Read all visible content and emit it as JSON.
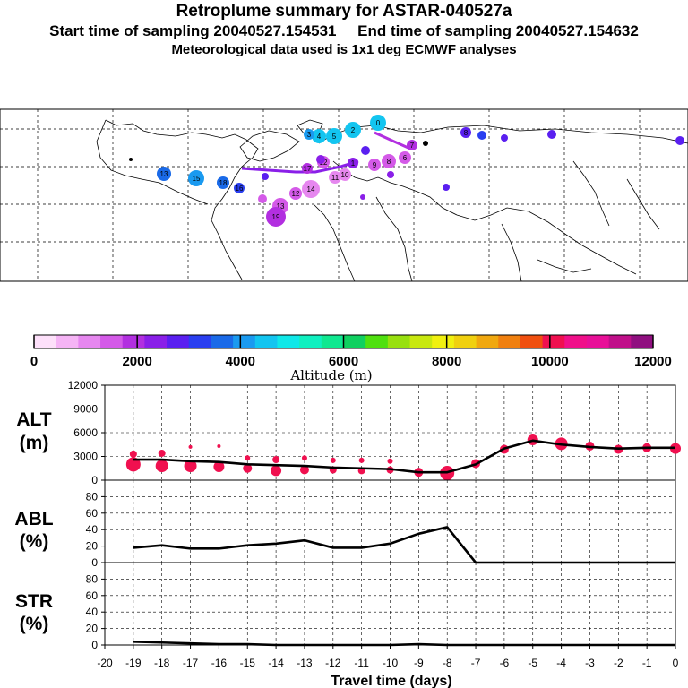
{
  "header": {
    "title": "Retroplume summary for ASTAR-040527a",
    "start_label": "Start time of sampling 20040527.154531",
    "end_label": "End time of sampling 20040527.154632",
    "met_label": "Meteorological data used is 1x1 deg ECMWF analyses"
  },
  "colorbar": {
    "label": "Altitude (m)",
    "ticks": [
      "0",
      "2000",
      "4000",
      "6000",
      "8000",
      "10000",
      "12000"
    ],
    "colors": [
      "#fde0fa",
      "#f5b4f5",
      "#e687ef",
      "#d45ae8",
      "#b22fe0",
      "#8a1fe8",
      "#5a1ff0",
      "#2a3ff0",
      "#1a6ae8",
      "#1a9af0",
      "#13c5f0",
      "#10e8e8",
      "#10f0c0",
      "#10e890",
      "#10d060",
      "#50e010",
      "#98e010",
      "#c8e810",
      "#f0f010",
      "#f0d010",
      "#f0a810",
      "#f08010",
      "#f05010",
      "#f01050",
      "#f0108a",
      "#e81098",
      "#c0108a",
      "#901080"
    ]
  },
  "map": {
    "trajectory_labels": [
      "0",
      "1",
      "2",
      "3",
      "4",
      "5",
      "6",
      "7",
      "8",
      "9",
      "10",
      "11",
      "12",
      "13",
      "14",
      "15",
      "16",
      "17",
      "18",
      "19"
    ]
  },
  "chart_data": [
    {
      "type": "line",
      "name": "ALT",
      "ylabel_line1": "ALT",
      "ylabel_line2": "(m)",
      "ylim": [
        0,
        12000
      ],
      "yticks": [
        "0",
        "3000",
        "6000",
        "9000",
        "12000"
      ],
      "x": [
        -19,
        -18,
        -17,
        -16,
        -15,
        -14,
        -13,
        -12,
        -11,
        -10,
        -9,
        -8,
        -7,
        -6,
        -5,
        -4,
        -3,
        -2,
        -1,
        0
      ],
      "values": [
        2600,
        2600,
        2400,
        2300,
        2000,
        1900,
        1800,
        1600,
        1500,
        1400,
        1000,
        1000,
        2000,
        4000,
        5000,
        4500,
        4200,
        4000,
        4100,
        4100
      ],
      "clusters": [
        {
          "x": -19,
          "points": [
            [
              2000,
              8
            ],
            [
              3300,
              4
            ]
          ]
        },
        {
          "x": -18,
          "points": [
            [
              1800,
              7
            ],
            [
              3400,
              4
            ]
          ]
        },
        {
          "x": -17,
          "points": [
            [
              1800,
              7
            ],
            [
              4200,
              2
            ]
          ]
        },
        {
          "x": -16,
          "points": [
            [
              1700,
              6
            ],
            [
              4300,
              2
            ]
          ]
        },
        {
          "x": -15,
          "points": [
            [
              1500,
              5
            ],
            [
              2800,
              3
            ]
          ]
        },
        {
          "x": -14,
          "points": [
            [
              1200,
              6
            ],
            [
              2600,
              4
            ]
          ]
        },
        {
          "x": -13,
          "points": [
            [
              1300,
              5
            ],
            [
              2800,
              3
            ]
          ]
        },
        {
          "x": -12,
          "points": [
            [
              1300,
              4
            ],
            [
              2500,
              3
            ]
          ]
        },
        {
          "x": -11,
          "points": [
            [
              1200,
              4
            ],
            [
              2500,
              3
            ]
          ]
        },
        {
          "x": -10,
          "points": [
            [
              1300,
              4
            ],
            [
              2400,
              3
            ]
          ]
        },
        {
          "x": -9,
          "points": [
            [
              1000,
              5
            ]
          ]
        },
        {
          "x": -8,
          "points": [
            [
              900,
              8
            ]
          ]
        },
        {
          "x": -7,
          "points": [
            [
              2100,
              5
            ]
          ]
        },
        {
          "x": -6,
          "points": [
            [
              3900,
              5
            ]
          ]
        },
        {
          "x": -5,
          "points": [
            [
              5100,
              6
            ]
          ]
        },
        {
          "x": -4,
          "points": [
            [
              4600,
              7
            ]
          ]
        },
        {
          "x": -3,
          "points": [
            [
              4300,
              5
            ]
          ]
        },
        {
          "x": -2,
          "points": [
            [
              3900,
              5
            ]
          ]
        },
        {
          "x": -1,
          "points": [
            [
              4100,
              5
            ]
          ]
        },
        {
          "x": 0,
          "points": [
            [
              4000,
              6
            ]
          ]
        }
      ]
    },
    {
      "type": "line",
      "name": "ABL",
      "ylabel_line1": "ABL",
      "ylabel_line2": "(%)",
      "ylim": [
        0,
        100
      ],
      "yticks": [
        "0",
        "20",
        "40",
        "60",
        "80"
      ],
      "x": [
        -19,
        -18,
        -17,
        -16,
        -15,
        -14,
        -13,
        -12,
        -11,
        -10,
        -9,
        -8,
        -7,
        -6,
        -5,
        -4,
        -3,
        -2,
        -1,
        0
      ],
      "values": [
        18,
        21,
        17,
        17,
        21,
        23,
        27,
        18,
        18,
        23,
        35,
        43,
        0,
        0,
        0,
        0,
        0,
        0,
        0,
        0
      ]
    },
    {
      "type": "line",
      "name": "STR",
      "ylabel_line1": "STR",
      "ylabel_line2": "(%)",
      "ylim": [
        0,
        100
      ],
      "yticks": [
        "0",
        "20",
        "40",
        "60",
        "80"
      ],
      "x": [
        -19,
        -18,
        -17,
        -16,
        -15,
        -14,
        -13,
        -12,
        -11,
        -10,
        -9,
        -8,
        -7,
        -6,
        -5,
        -4,
        -3,
        -2,
        -1,
        0
      ],
      "values": [
        4,
        3,
        2,
        1,
        1,
        0,
        0,
        0,
        0,
        0,
        1,
        0,
        0,
        0,
        0,
        0,
        0,
        0,
        0,
        0
      ]
    }
  ],
  "xaxis": {
    "label": "Travel time (days)",
    "ticks": [
      "-20",
      "-19",
      "-18",
      "-17",
      "-16",
      "-15",
      "-14",
      "-13",
      "-12",
      "-11",
      "-10",
      "-9",
      "-8",
      "-7",
      "-6",
      "-5",
      "-4",
      "-3",
      "-2",
      "-1",
      "0"
    ]
  }
}
